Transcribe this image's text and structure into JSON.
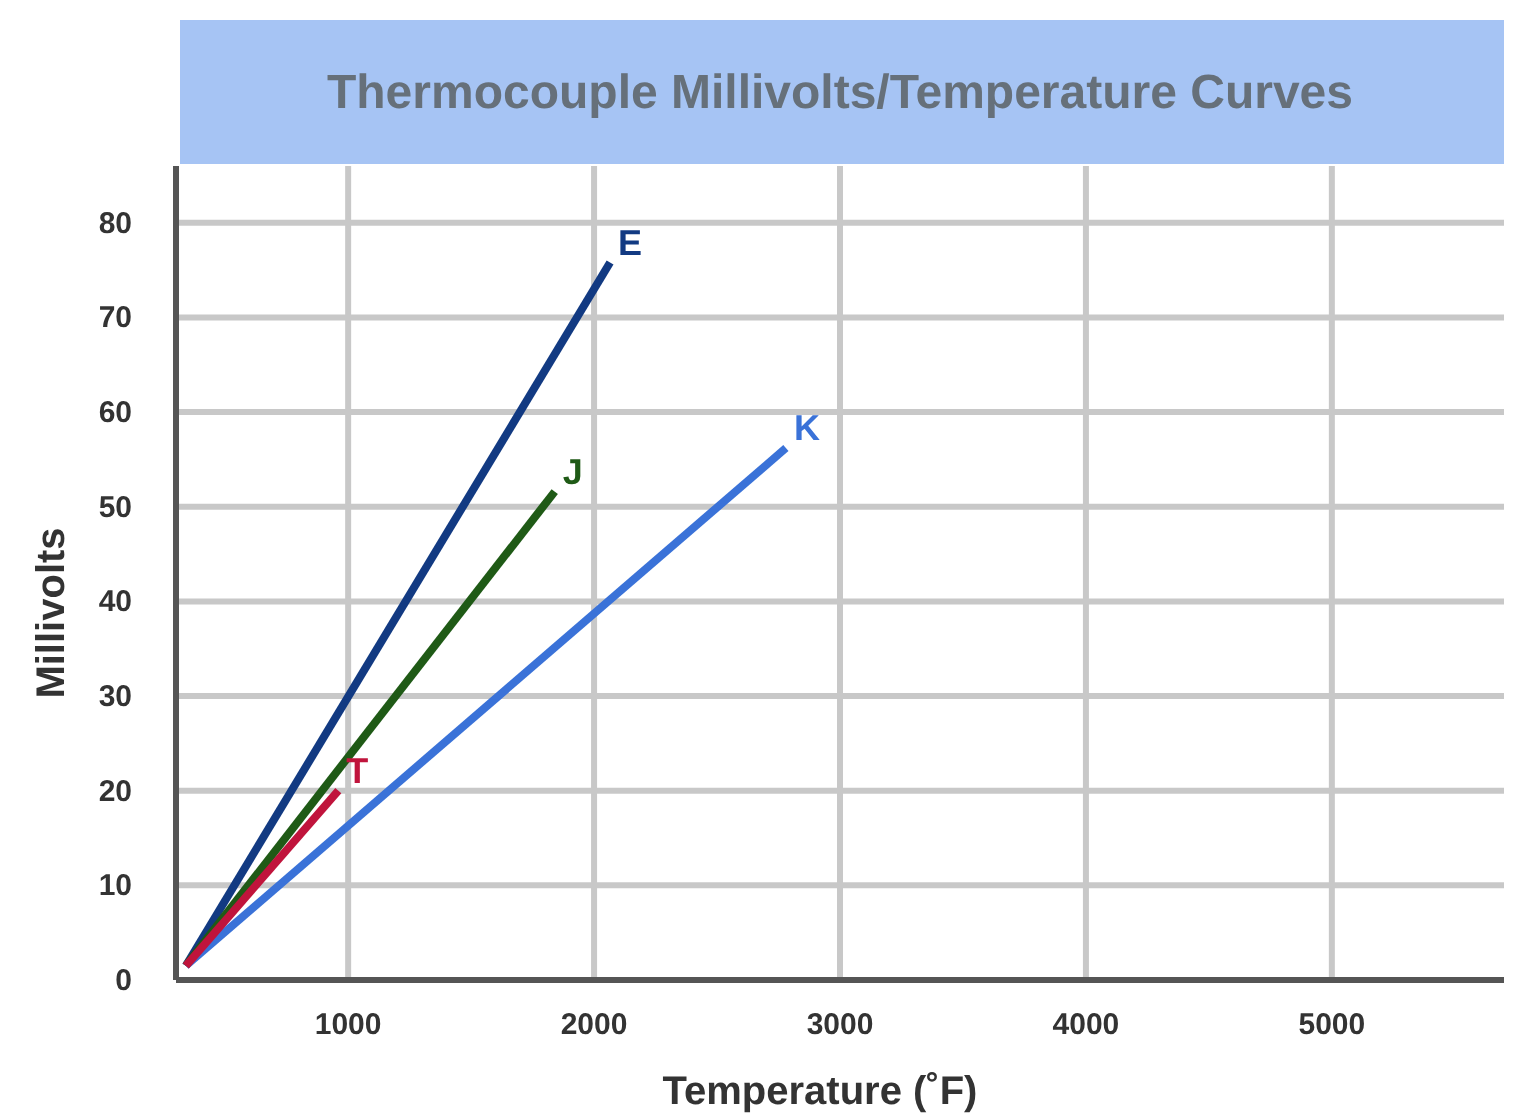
{
  "chart_data": {
    "type": "line",
    "title": "Thermocouple Millivolts/Temperature Curves",
    "xlabel": "Temperature (˚F)",
    "ylabel": "Millivolts",
    "xlim": [
      300,
      5700
    ],
    "ylim": [
      0,
      86
    ],
    "xticks": [
      1000,
      2000,
      3000,
      4000,
      5000
    ],
    "yticks": [
      0,
      10,
      20,
      30,
      40,
      50,
      60,
      70,
      80
    ],
    "grid": true,
    "marker": "none",
    "line_style": "solid",
    "series": [
      {
        "name": "E",
        "color": "#123a82",
        "x": [
          340,
          2065
        ],
        "values": [
          1.5,
          75.8
        ]
      },
      {
        "name": "J",
        "color": "#1f5a16",
        "x": [
          340,
          1840
        ],
        "values": [
          1.5,
          51.6
        ]
      },
      {
        "name": "K",
        "color": "#3a72d8",
        "x": [
          340,
          2780
        ],
        "values": [
          1.5,
          56.2
        ]
      },
      {
        "name": "T",
        "color": "#c0143c",
        "x": [
          340,
          960
        ],
        "values": [
          1.5,
          20
        ]
      }
    ]
  }
}
